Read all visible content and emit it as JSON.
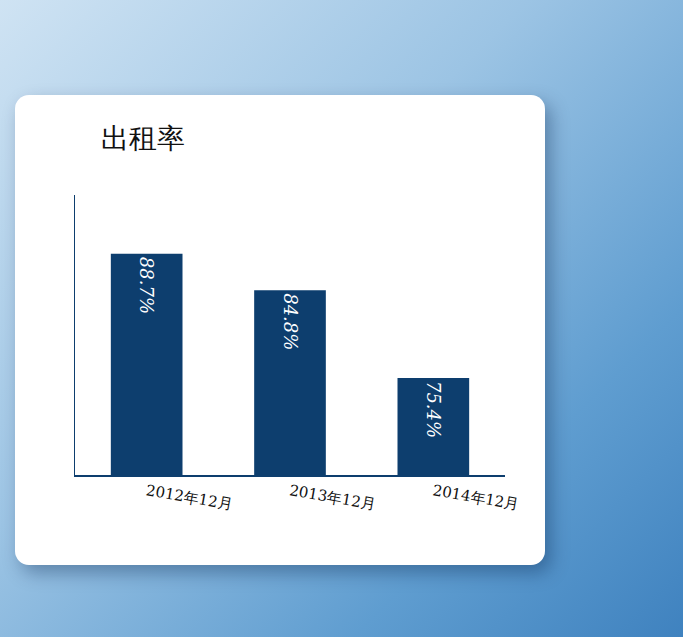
{
  "chart_data": {
    "type": "bar",
    "title": "出租率",
    "categories": [
      "2012年12月",
      "2013年12月",
      "2014年12月"
    ],
    "values": [
      88.7,
      84.8,
      75.4
    ],
    "value_labels": [
      "88.7%",
      "84.8%",
      "75.4%"
    ],
    "color": "#0d3e6e",
    "ylim": [
      65,
      95
    ],
    "yticks": [],
    "data_labels": true,
    "tick_labels": "x",
    "grid": false
  }
}
